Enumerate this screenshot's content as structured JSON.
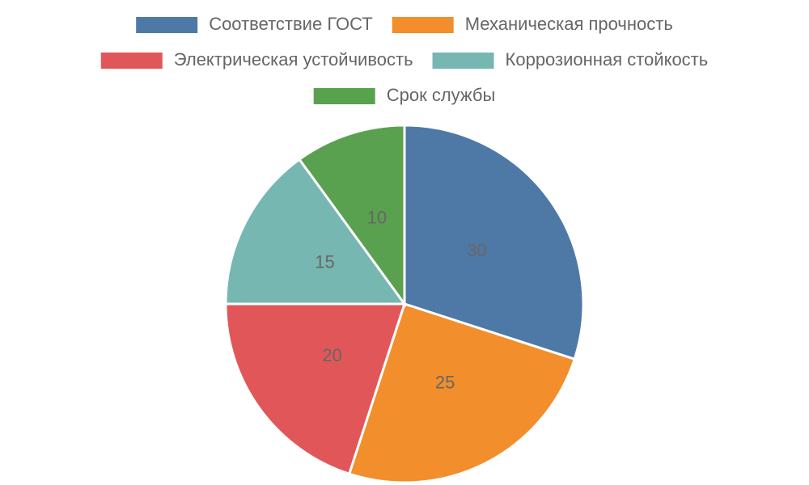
{
  "chart_data": {
    "type": "pie",
    "categories": [
      "Соответствие ГОСТ",
      "Механическая прочность",
      "Электрическая устойчивость",
      "Коррозионная стойкость",
      "Срок службы"
    ],
    "values": [
      30,
      25,
      20,
      15,
      10
    ],
    "colors": [
      "#4e79a7",
      "#f28e2b",
      "#e15759",
      "#76b7b2",
      "#59a14f"
    ],
    "legend": "top"
  }
}
